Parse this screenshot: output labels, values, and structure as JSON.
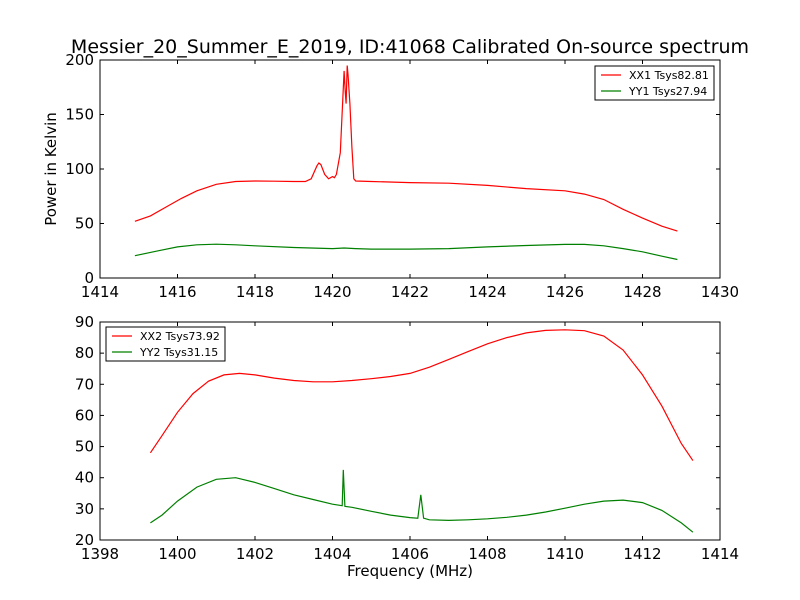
{
  "figure": {
    "title": "Messier_20_Summer_E_2019, ID:41068 Calibrated On-source spectrum"
  },
  "chart_data": [
    {
      "type": "line",
      "title": "Messier_20_Summer_E_2019, ID:41068 Calibrated On-source spectrum",
      "xlabel": "",
      "ylabel": "Power in Kelvin",
      "xlim": [
        1414,
        1430
      ],
      "ylim": [
        0,
        200
      ],
      "xticks": [
        1414,
        1416,
        1418,
        1420,
        1422,
        1424,
        1426,
        1428,
        1430
      ],
      "yticks": [
        0,
        50,
        100,
        150,
        200
      ],
      "grid": false,
      "legend_position": "top-right",
      "series": [
        {
          "name": "XX1 Tsys82.81",
          "color": "#ff0000",
          "points": [
            [
              1414.9,
              52
            ],
            [
              1415.3,
              57
            ],
            [
              1415.7,
              65
            ],
            [
              1416.1,
              73
            ],
            [
              1416.5,
              80
            ],
            [
              1417.0,
              86
            ],
            [
              1417.5,
              88.5
            ],
            [
              1418.0,
              89
            ],
            [
              1418.5,
              88.8
            ],
            [
              1419.0,
              88.5
            ],
            [
              1419.3,
              88.5
            ],
            [
              1419.45,
              91
            ],
            [
              1419.6,
              103
            ],
            [
              1419.65,
              105.5
            ],
            [
              1419.7,
              104
            ],
            [
              1419.8,
              95
            ],
            [
              1419.9,
              91
            ],
            [
              1420.0,
              93
            ],
            [
              1420.05,
              92
            ],
            [
              1420.1,
              95
            ],
            [
              1420.2,
              115
            ],
            [
              1420.3,
              190
            ],
            [
              1420.33,
              170
            ],
            [
              1420.35,
              160
            ],
            [
              1420.38,
              195
            ],
            [
              1420.4,
              187
            ],
            [
              1420.45,
              160
            ],
            [
              1420.5,
              120
            ],
            [
              1420.55,
              91
            ],
            [
              1420.6,
              89
            ],
            [
              1421.0,
              88.5
            ],
            [
              1422.0,
              87.5
            ],
            [
              1423.0,
              87
            ],
            [
              1424.0,
              85
            ],
            [
              1425.0,
              82
            ],
            [
              1426.0,
              80
            ],
            [
              1426.5,
              77
            ],
            [
              1427.0,
              72
            ],
            [
              1427.5,
              63
            ],
            [
              1428.0,
              55
            ],
            [
              1428.5,
              47.5
            ],
            [
              1428.9,
              43
            ]
          ]
        },
        {
          "name": "YY1 Tsys27.94",
          "color": "#008000",
          "points": [
            [
              1414.9,
              20.5
            ],
            [
              1415.5,
              25
            ],
            [
              1416.0,
              28.5
            ],
            [
              1416.5,
              30.5
            ],
            [
              1417.0,
              31
            ],
            [
              1417.5,
              30.5
            ],
            [
              1418.0,
              29.5
            ],
            [
              1419.0,
              28
            ],
            [
              1420.0,
              27
            ],
            [
              1420.3,
              27.5
            ],
            [
              1420.6,
              27
            ],
            [
              1421.0,
              26.5
            ],
            [
              1422.0,
              26.5
            ],
            [
              1423.0,
              27
            ],
            [
              1424.0,
              28.5
            ],
            [
              1425.0,
              29.8
            ],
            [
              1426.0,
              30.8
            ],
            [
              1426.5,
              30.8
            ],
            [
              1427.0,
              29.5
            ],
            [
              1427.5,
              27
            ],
            [
              1428.0,
              24
            ],
            [
              1428.5,
              20
            ],
            [
              1428.9,
              17
            ]
          ]
        }
      ]
    },
    {
      "type": "line",
      "title": "",
      "xlabel": "Frequency (MHz)",
      "ylabel": "",
      "xlim": [
        1398,
        1414
      ],
      "ylim": [
        20,
        90
      ],
      "xticks": [
        1398,
        1400,
        1402,
        1404,
        1406,
        1408,
        1410,
        1412,
        1414
      ],
      "yticks": [
        20,
        30,
        40,
        50,
        60,
        70,
        80,
        90
      ],
      "grid": false,
      "legend_position": "top-left",
      "series": [
        {
          "name": "XX2 Tsys73.92",
          "color": "#ff0000",
          "points": [
            [
              1399.3,
              48
            ],
            [
              1399.6,
              53.5
            ],
            [
              1400.0,
              61
            ],
            [
              1400.4,
              67
            ],
            [
              1400.8,
              71
            ],
            [
              1401.2,
              73
            ],
            [
              1401.6,
              73.5
            ],
            [
              1402.0,
              73
            ],
            [
              1402.5,
              72
            ],
            [
              1403.0,
              71.2
            ],
            [
              1403.5,
              70.8
            ],
            [
              1404.0,
              70.8
            ],
            [
              1404.5,
              71.2
            ],
            [
              1405.0,
              71.8
            ],
            [
              1405.5,
              72.5
            ],
            [
              1406.0,
              73.5
            ],
            [
              1406.5,
              75.5
            ],
            [
              1407.0,
              78
            ],
            [
              1407.5,
              80.5
            ],
            [
              1408.0,
              83
            ],
            [
              1408.5,
              85
            ],
            [
              1409.0,
              86.5
            ],
            [
              1409.5,
              87.3
            ],
            [
              1410.0,
              87.5
            ],
            [
              1410.5,
              87.2
            ],
            [
              1411.0,
              85.5
            ],
            [
              1411.5,
              81
            ],
            [
              1412.0,
              73
            ],
            [
              1412.5,
              63
            ],
            [
              1413.0,
              51
            ],
            [
              1413.3,
              45.5
            ]
          ]
        },
        {
          "name": "YY2 Tsys31.15",
          "color": "#008000",
          "points": [
            [
              1399.3,
              25.5
            ],
            [
              1399.6,
              28
            ],
            [
              1400.0,
              32.5
            ],
            [
              1400.5,
              37
            ],
            [
              1401.0,
              39.5
            ],
            [
              1401.5,
              40
            ],
            [
              1402.0,
              38.5
            ],
            [
              1402.5,
              36.5
            ],
            [
              1403.0,
              34.5
            ],
            [
              1403.5,
              33
            ],
            [
              1404.0,
              31.5
            ],
            [
              1404.25,
              31
            ],
            [
              1404.28,
              42.5
            ],
            [
              1404.32,
              30.8
            ],
            [
              1404.5,
              30.5
            ],
            [
              1405.0,
              29.2
            ],
            [
              1405.5,
              28
            ],
            [
              1406.0,
              27.2
            ],
            [
              1406.2,
              27
            ],
            [
              1406.28,
              34.5
            ],
            [
              1406.35,
              27
            ],
            [
              1406.5,
              26.5
            ],
            [
              1407.0,
              26.3
            ],
            [
              1407.5,
              26.5
            ],
            [
              1408.0,
              26.8
            ],
            [
              1408.5,
              27.3
            ],
            [
              1409.0,
              28
            ],
            [
              1409.5,
              29
            ],
            [
              1410.0,
              30.2
            ],
            [
              1410.5,
              31.5
            ],
            [
              1411.0,
              32.5
            ],
            [
              1411.5,
              32.8
            ],
            [
              1412.0,
              32
            ],
            [
              1412.5,
              29.5
            ],
            [
              1413.0,
              25.5
            ],
            [
              1413.3,
              22.5
            ]
          ]
        }
      ]
    }
  ]
}
